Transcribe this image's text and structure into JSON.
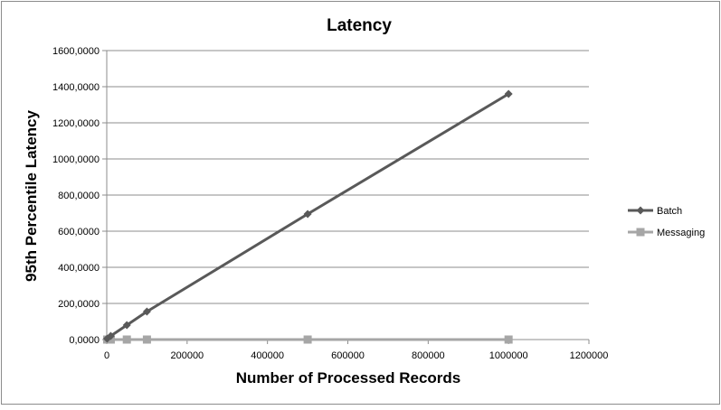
{
  "chart_data": {
    "type": "line",
    "title": "Latency",
    "xlabel": "Number of Processed Records",
    "ylabel": "95th Percentile Latency",
    "xlim": [
      0,
      1200000
    ],
    "ylim": [
      0,
      1600
    ],
    "x_ticks": [
      0,
      200000,
      400000,
      600000,
      800000,
      1000000,
      1200000
    ],
    "x_tick_labels": [
      "0",
      "200000",
      "400000",
      "600000",
      "800000",
      "1000000",
      "1200000"
    ],
    "y_ticks": [
      0,
      200,
      400,
      600,
      800,
      1000,
      1200,
      1400,
      1600
    ],
    "y_tick_labels": [
      "0,0000",
      "200,0000",
      "400,0000",
      "600,0000",
      "800,0000",
      "1000,0000",
      "1200,0000",
      "1400,0000",
      "1600,0000"
    ],
    "grid": true,
    "legend_position": "right",
    "series": [
      {
        "name": "Batch",
        "color": "#595959",
        "marker": "diamond",
        "points": [
          {
            "x": 1000,
            "y": 5
          },
          {
            "x": 10000,
            "y": 20
          },
          {
            "x": 50000,
            "y": 80
          },
          {
            "x": 100000,
            "y": 155
          },
          {
            "x": 500000,
            "y": 695
          },
          {
            "x": 1000000,
            "y": 1360
          }
        ]
      },
      {
        "name": "Messaging",
        "color": "#a6a6a6",
        "marker": "square",
        "points": [
          {
            "x": 1000,
            "y": 0
          },
          {
            "x": 10000,
            "y": 0
          },
          {
            "x": 50000,
            "y": 0
          },
          {
            "x": 100000,
            "y": 0
          },
          {
            "x": 500000,
            "y": 0
          },
          {
            "x": 1000000,
            "y": 0
          }
        ]
      }
    ]
  }
}
